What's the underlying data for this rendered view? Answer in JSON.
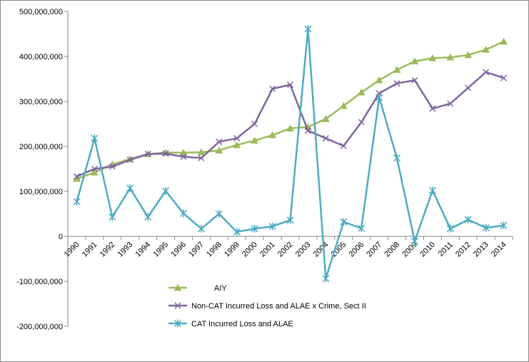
{
  "chart_data": {
    "type": "line",
    "title": "",
    "xlabel": "",
    "ylabel": "",
    "ylim": [
      -200000000,
      500000000
    ],
    "ytick_step": 100000000,
    "ytick_labels": [
      "500,000,000",
      "400,000,000",
      "300,000,000",
      "200,000,000",
      "100,000,000",
      "0",
      "-100,000,000",
      "-200,000,000"
    ],
    "grid": false,
    "legend_position": "bottom-center",
    "categories": [
      "1990",
      "1991",
      "1992",
      "1993",
      "1994",
      "1995",
      "1996",
      "1997",
      "1998",
      "1999",
      "2000",
      "2001",
      "2002",
      "2003",
      "2004",
      "2005",
      "2006",
      "2007",
      "2008",
      "2009",
      "2010",
      "2011",
      "2012",
      "2013",
      "2014"
    ],
    "series": [
      {
        "name": "AIY",
        "color": "#9BBB59",
        "marker": "triangle",
        "values": [
          128000000,
          142000000,
          160000000,
          172000000,
          183000000,
          186000000,
          186000000,
          187000000,
          191000000,
          203000000,
          213000000,
          225000000,
          240000000,
          243000000,
          261000000,
          290000000,
          320000000,
          347000000,
          370000000,
          389000000,
          396000000,
          398000000,
          403000000,
          415000000,
          433000000
        ]
      },
      {
        "name": "Non-CAT Incurred Loss and ALAE x  Crime, Sect II",
        "color": "#8064A2",
        "marker": "x",
        "values": [
          133000000,
          150000000,
          155000000,
          170000000,
          183000000,
          184000000,
          177000000,
          174000000,
          210000000,
          218000000,
          250000000,
          328000000,
          337000000,
          235000000,
          218000000,
          201000000,
          254000000,
          318000000,
          340000000,
          347000000,
          284000000,
          295000000,
          330000000,
          365000000,
          352000000
        ]
      },
      {
        "name": "CAT Incurred Loss and ALAE",
        "color": "#4BACC6",
        "marker": "star",
        "values": [
          77000000,
          218000000,
          43000000,
          107000000,
          43000000,
          101000000,
          51000000,
          17000000,
          50000000,
          10000000,
          17000000,
          22000000,
          36000000,
          461000000,
          -94000000,
          32000000,
          18000000,
          309000000,
          174000000,
          -11000000,
          102000000,
          17000000,
          37000000,
          19000000,
          24000000
        ]
      }
    ]
  }
}
